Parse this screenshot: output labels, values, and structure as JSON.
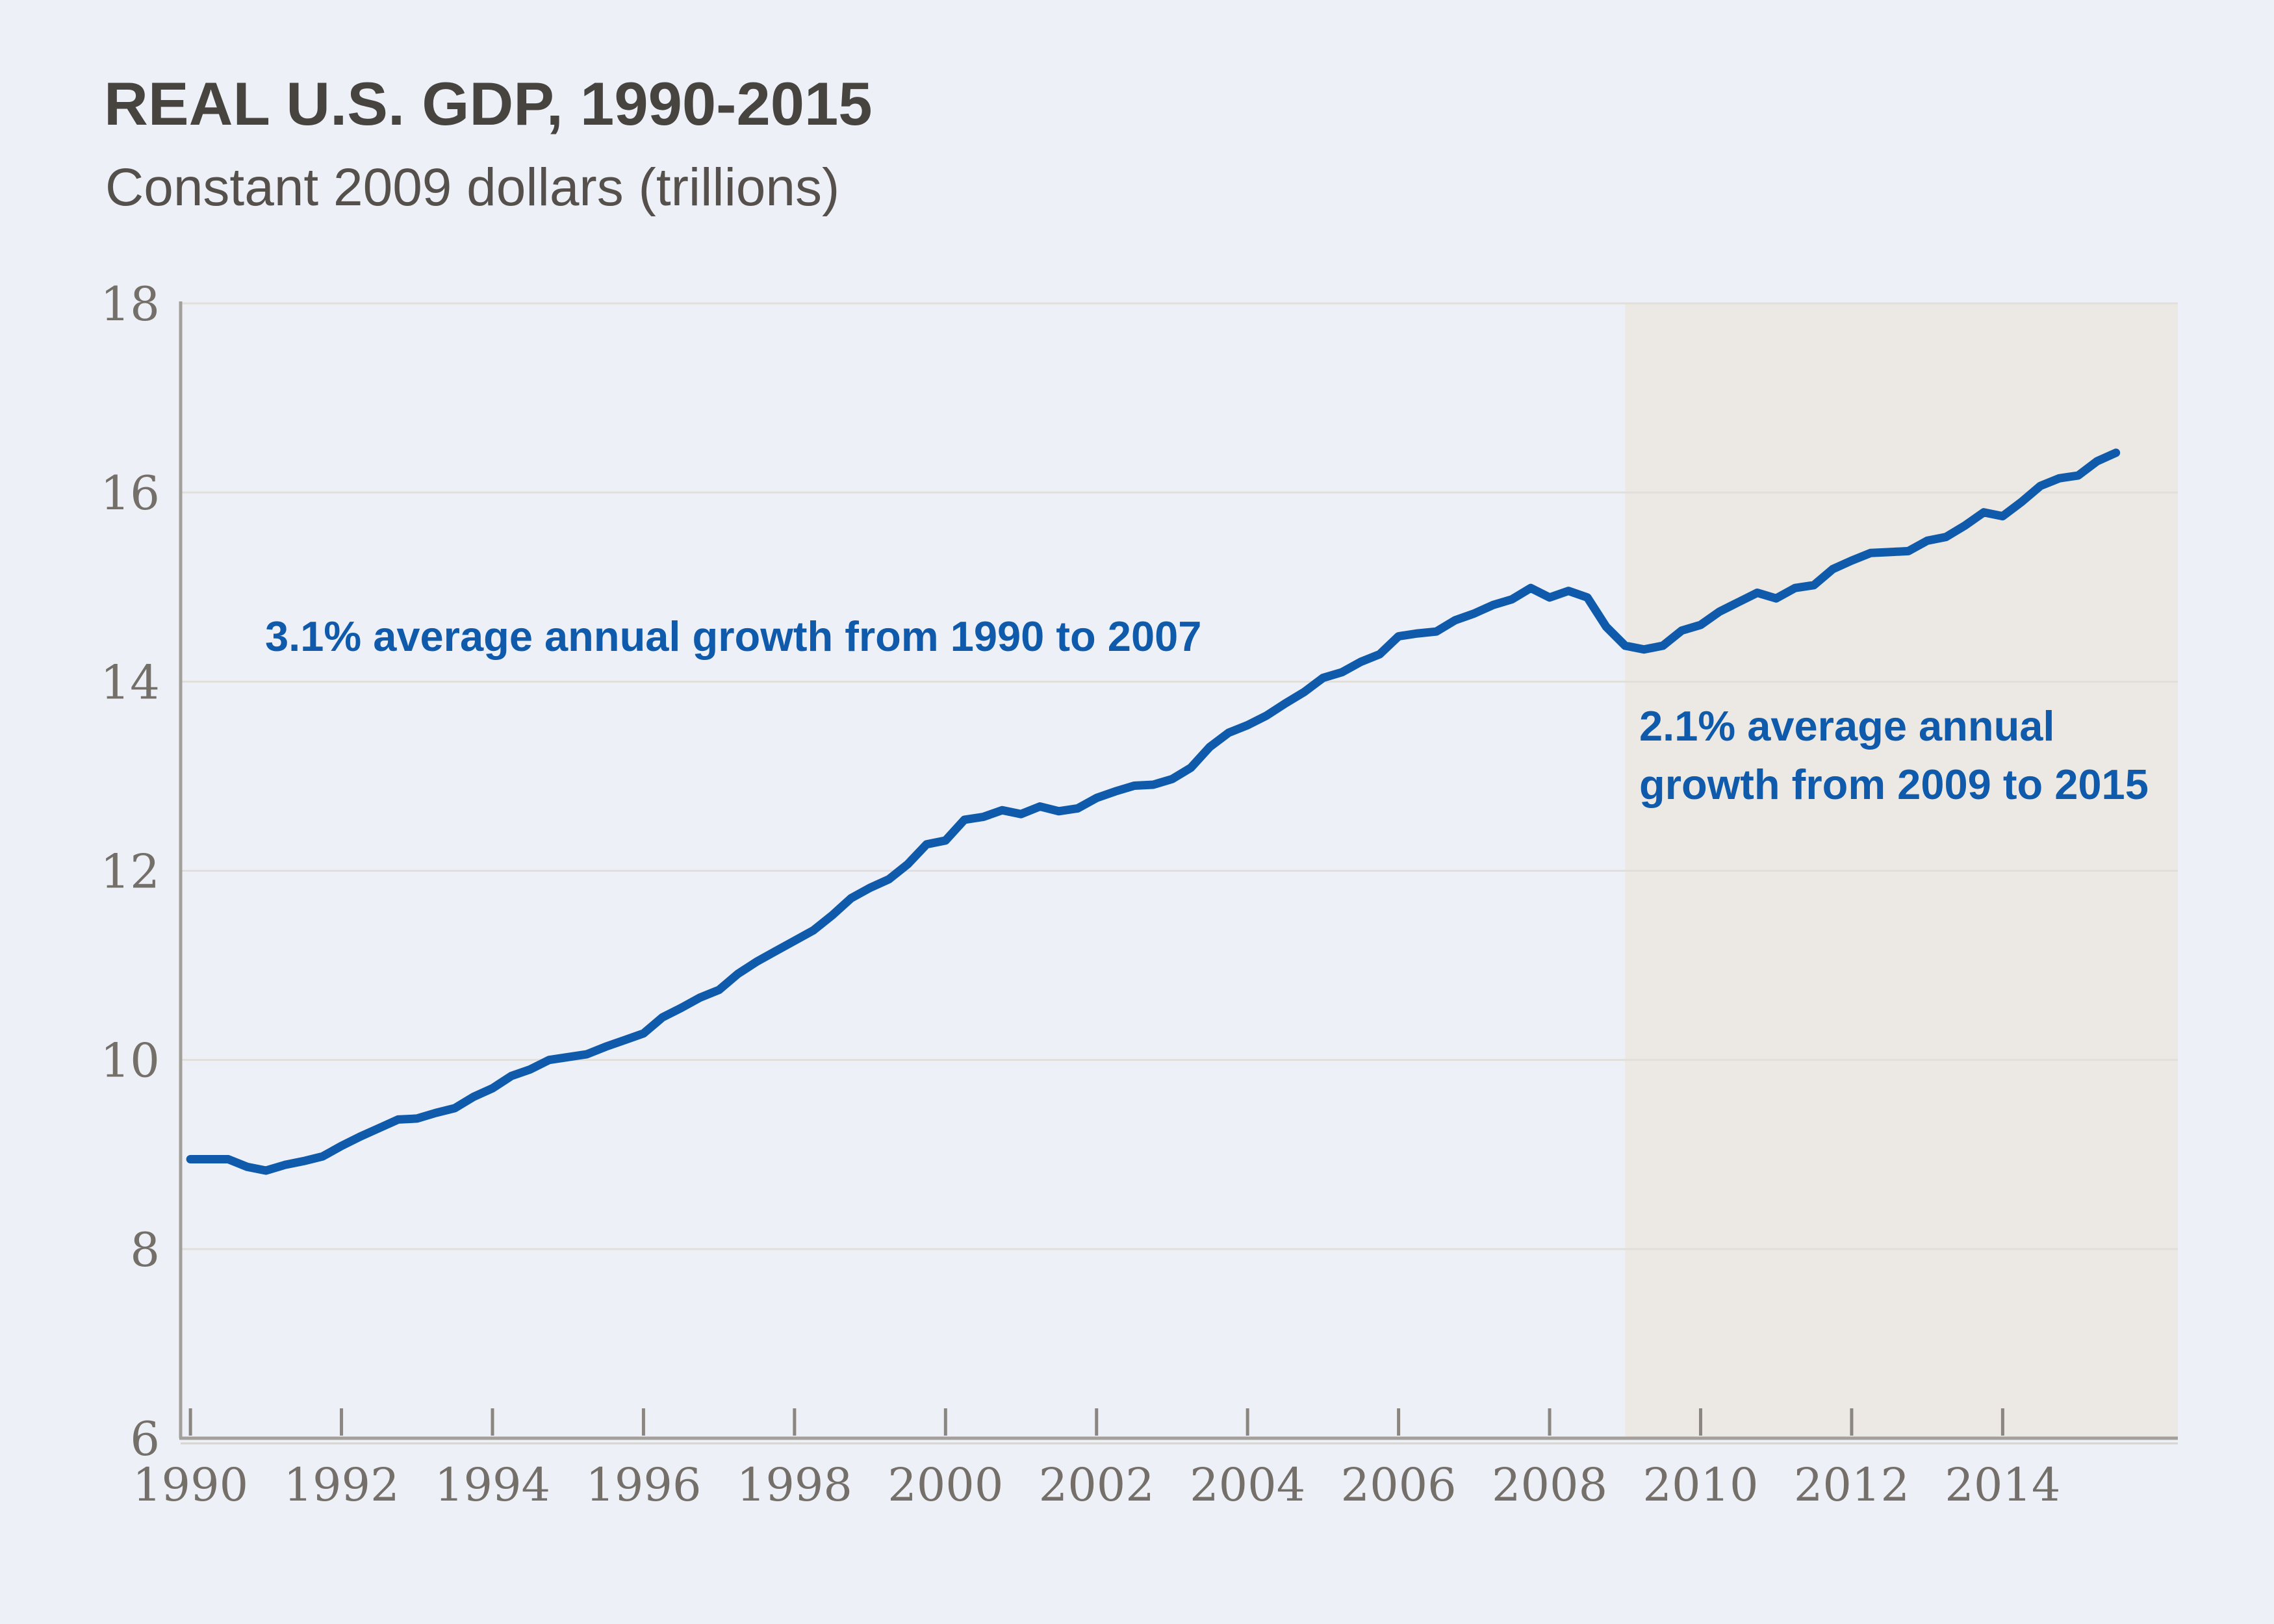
{
  "colors": {
    "background": "#edf1f7",
    "recession_shade": "#ece9e5",
    "line": "#0f5aab",
    "annotation": "#0f5aab",
    "grid": "#e2dfdb",
    "axis": "#a3a09b",
    "axis_shadow": "#d8d5d1",
    "tick": "#8b8680",
    "tick_label": "#756f69",
    "title": "#474440",
    "subtitle": "#55504b"
  },
  "chart_data": {
    "type": "line",
    "title": "REAL U.S. GDP, 1990-2015",
    "subtitle": "Constant 2009 dollars (trillions)",
    "xlabel": "",
    "ylabel": "Constant 2009 dollars (trillions)",
    "ylim": [
      6,
      18
    ],
    "yticks": [
      6,
      8,
      10,
      12,
      14,
      16,
      18
    ],
    "xlim": [
      1989.87,
      2016.32
    ],
    "xticks": [
      1990,
      1992,
      1994,
      1996,
      1998,
      2000,
      2002,
      2004,
      2006,
      2008,
      2010,
      2012,
      2014
    ],
    "grid": "horizontal",
    "legend": "none",
    "shaded_region": {
      "from": 2009,
      "to": 2016.32
    },
    "series": [
      {
        "name": "Real U.S. GDP",
        "x_start": 1990,
        "x_step": 0.25,
        "values": [
          8.95,
          8.95,
          8.95,
          8.87,
          8.83,
          8.89,
          8.93,
          8.98,
          9.09,
          9.19,
          9.28,
          9.37,
          9.38,
          9.44,
          9.49,
          9.61,
          9.7,
          9.83,
          9.9,
          10.0,
          10.03,
          10.06,
          10.14,
          10.21,
          10.28,
          10.45,
          10.55,
          10.66,
          10.74,
          10.91,
          11.04,
          11.15,
          11.26,
          11.37,
          11.53,
          11.71,
          11.82,
          11.91,
          12.07,
          12.28,
          12.32,
          12.54,
          12.57,
          12.64,
          12.6,
          12.68,
          12.63,
          12.66,
          12.77,
          12.84,
          12.9,
          12.91,
          12.97,
          13.09,
          13.31,
          13.46,
          13.54,
          13.64,
          13.77,
          13.89,
          14.04,
          14.1,
          14.21,
          14.29,
          14.48,
          14.51,
          14.53,
          14.65,
          14.72,
          14.81,
          14.87,
          14.99,
          14.89,
          14.96,
          14.89,
          14.58,
          14.38,
          14.34,
          14.38,
          14.54,
          14.6,
          14.74,
          14.84,
          14.94,
          14.88,
          14.99,
          15.02,
          15.19,
          15.28,
          15.36,
          15.37,
          15.38,
          15.49,
          15.53,
          15.65,
          15.79,
          15.75,
          15.9,
          16.07,
          16.15,
          16.18,
          16.33,
          16.42
        ]
      }
    ],
    "annotations": [
      {
        "text": "3.1% average annual growth from 1990 to 2007",
        "x": 1990.99,
        "y": 14.33,
        "lines": [
          "3.1% average annual growth from 1990 to 2007"
        ]
      },
      {
        "text": "2.1% average annual\ngrowth from 2009 to 2015",
        "x": 2009.18,
        "y": 13.38,
        "lines": [
          "2.1% average annual",
          "growth from 2009 to 2015"
        ]
      }
    ]
  }
}
